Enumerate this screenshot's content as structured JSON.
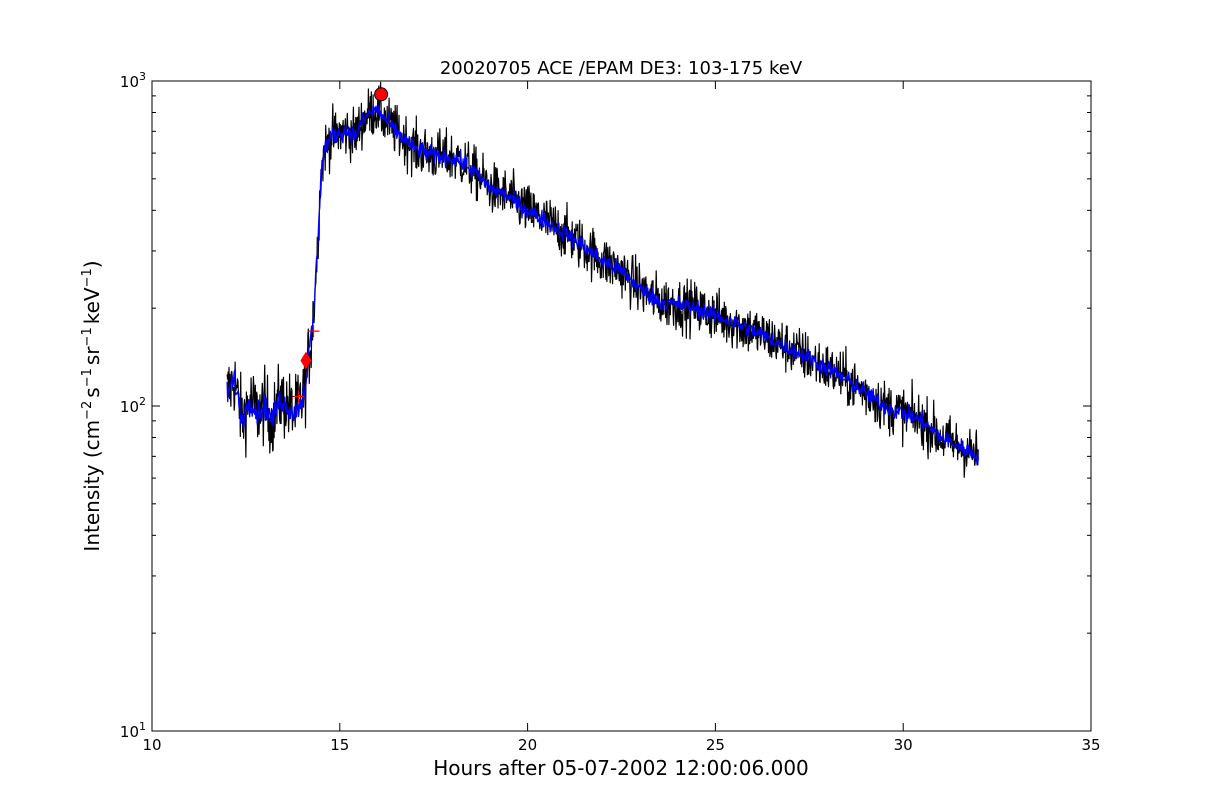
{
  "chart_data": {
    "type": "line",
    "title": "20020705 ACE /EPAM DE3: 103-175 keV",
    "xlabel": "Hours after 05-07-2002 12:00:06.000",
    "ylabel": "Intensity (cm⁻² s⁻¹ sr⁻¹ keV⁻¹)",
    "ylabel_parts": {
      "base": "Intensity (cm",
      "sup1": "−2",
      "mid1": "s",
      "sup2": "−1",
      "mid2": "sr",
      "sup3": "−1",
      "mid3": "keV",
      "sup4": "−1",
      "end": ")"
    },
    "xlim": [
      10,
      35
    ],
    "ylim": [
      10,
      1000
    ],
    "yscale": "log",
    "grid": false,
    "x_ticks": [
      10,
      15,
      20,
      25,
      30,
      35
    ],
    "x_tick_labels": [
      "10",
      "15",
      "20",
      "25",
      "30",
      "35"
    ],
    "y_ticks": [
      10,
      100,
      1000
    ],
    "y_tick_labels": [
      {
        "base": "10",
        "exp": "1"
      },
      {
        "base": "10",
        "exp": "2"
      },
      {
        "base": "10",
        "exp": "3"
      }
    ],
    "series": [
      {
        "color": "#000000",
        "role": "raw intensity",
        "x": [
          12.0,
          12.2,
          12.4,
          12.6,
          12.8,
          13.0,
          13.2,
          13.4,
          13.6,
          13.8,
          14.0,
          14.1,
          14.2,
          14.3,
          14.4,
          14.5,
          14.6,
          14.8,
          15.0,
          15.2,
          15.4,
          15.6,
          15.8,
          16.0,
          16.2,
          16.4,
          16.6,
          16.8,
          17.0,
          17.5,
          18.0,
          18.3,
          18.6,
          19.0,
          19.5,
          20.0,
          20.5,
          21.0,
          21.5,
          22.0,
          22.5,
          23.0,
          23.5,
          24.0,
          24.5,
          25.0,
          25.5,
          26.0,
          26.5,
          27.0,
          27.5,
          28.0,
          28.5,
          29.0,
          29.5,
          30.0,
          30.5,
          31.0,
          31.5,
          32.0
        ],
        "values": [
          110,
          120,
          90,
          105,
          95,
          100,
          90,
          105,
          100,
          95,
          105,
          120,
          150,
          190,
          300,
          520,
          620,
          680,
          690,
          700,
          680,
          750,
          800,
          820,
          760,
          720,
          680,
          650,
          620,
          590,
          580,
          560,
          520,
          470,
          440,
          400,
          370,
          340,
          310,
          280,
          260,
          230,
          210,
          205,
          200,
          190,
          180,
          170,
          160,
          150,
          140,
          130,
          120,
          110,
          100,
          95,
          90,
          80,
          75,
          70
        ],
        "noise": 0.18
      },
      {
        "color": "#0000ff",
        "role": "smoothed intensity",
        "x": [
          12.0,
          12.2,
          12.4,
          12.6,
          12.8,
          13.0,
          13.2,
          13.4,
          13.6,
          13.8,
          14.0,
          14.1,
          14.2,
          14.3,
          14.4,
          14.5,
          14.6,
          14.8,
          15.0,
          15.2,
          15.4,
          15.6,
          15.8,
          16.0,
          16.2,
          16.4,
          16.6,
          16.8,
          17.0,
          17.5,
          18.0,
          18.3,
          18.6,
          19.0,
          19.5,
          20.0,
          20.5,
          21.0,
          21.5,
          22.0,
          22.5,
          23.0,
          23.5,
          24.0,
          24.5,
          25.0,
          25.5,
          26.0,
          26.5,
          27.0,
          27.5,
          28.0,
          28.5,
          29.0,
          29.5,
          30.0,
          30.5,
          31.0,
          31.5,
          32.0
        ],
        "values": [
          110,
          120,
          90,
          105,
          95,
          100,
          90,
          105,
          100,
          95,
          105,
          120,
          150,
          190,
          300,
          520,
          620,
          680,
          690,
          700,
          680,
          750,
          800,
          820,
          760,
          720,
          680,
          650,
          620,
          590,
          580,
          560,
          520,
          470,
          440,
          400,
          370,
          340,
          310,
          280,
          260,
          230,
          210,
          205,
          200,
          190,
          180,
          170,
          160,
          150,
          140,
          130,
          120,
          110,
          100,
          95,
          90,
          80,
          75,
          70
        ],
        "noise": 0.06
      }
    ],
    "markers": [
      {
        "shape": "circle",
        "color": "#ff0000",
        "x": 16.1,
        "y": 910
      },
      {
        "shape": "diamond",
        "color": "#ff0000",
        "x": 14.1,
        "y": 138
      },
      {
        "shape": "plus",
        "color": "#ff0000",
        "x": 13.9,
        "y": 107
      },
      {
        "shape": "plus",
        "color": "#ff0000",
        "x": 14.3,
        "y": 170
      }
    ]
  }
}
